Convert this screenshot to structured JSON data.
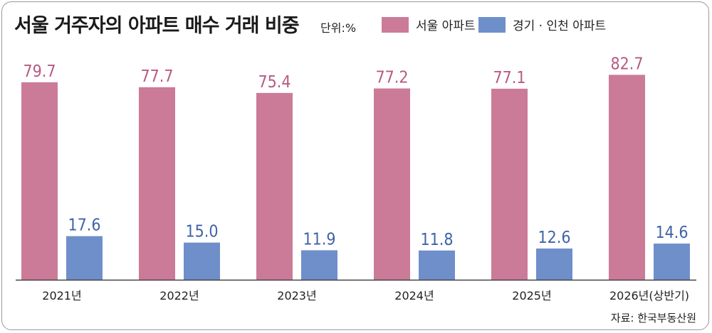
{
  "header": {
    "title": "서울 거주자의 아파트 매수 거래 비중",
    "unit": "단위:%",
    "source": "자료: 한국부동산원"
  },
  "colors": {
    "seoul": "#cb7b98",
    "gyeonggi": "#6f8fcb",
    "seoul_text": "#b65a82",
    "gyeonggi_text": "#3f63a8",
    "axis": "#444444"
  },
  "legend": [
    {
      "name": "서울 아파트",
      "color": "#cb7b98"
    },
    {
      "name": "경기 · 인천 아파트",
      "color": "#6f8fcb"
    }
  ],
  "chart_data": {
    "type": "bar",
    "title": "서울 거주자의 아파트 매수 거래 비중",
    "ylabel": "",
    "xlabel": "",
    "ylim": [
      0,
      90
    ],
    "grid": false,
    "legend_position": "top-right",
    "categories": [
      "2021년",
      "2022년",
      "2023년",
      "2024년",
      "2025년",
      "2026년(상반기)"
    ],
    "series": [
      {
        "name": "서울 아파트",
        "values": [
          79.7,
          77.7,
          75.4,
          77.2,
          77.1,
          82.7
        ]
      },
      {
        "name": "경기 · 인천 아파트",
        "values": [
          17.6,
          15.0,
          11.9,
          11.8,
          12.6,
          14.6
        ]
      }
    ],
    "value_labels": [
      [
        "79.7",
        "77.7",
        "75.4",
        "77.2",
        "77.1",
        "82.7"
      ],
      [
        "17.6",
        "15.0",
        "11.9",
        "11.8",
        "12.6",
        "14.6"
      ]
    ]
  }
}
